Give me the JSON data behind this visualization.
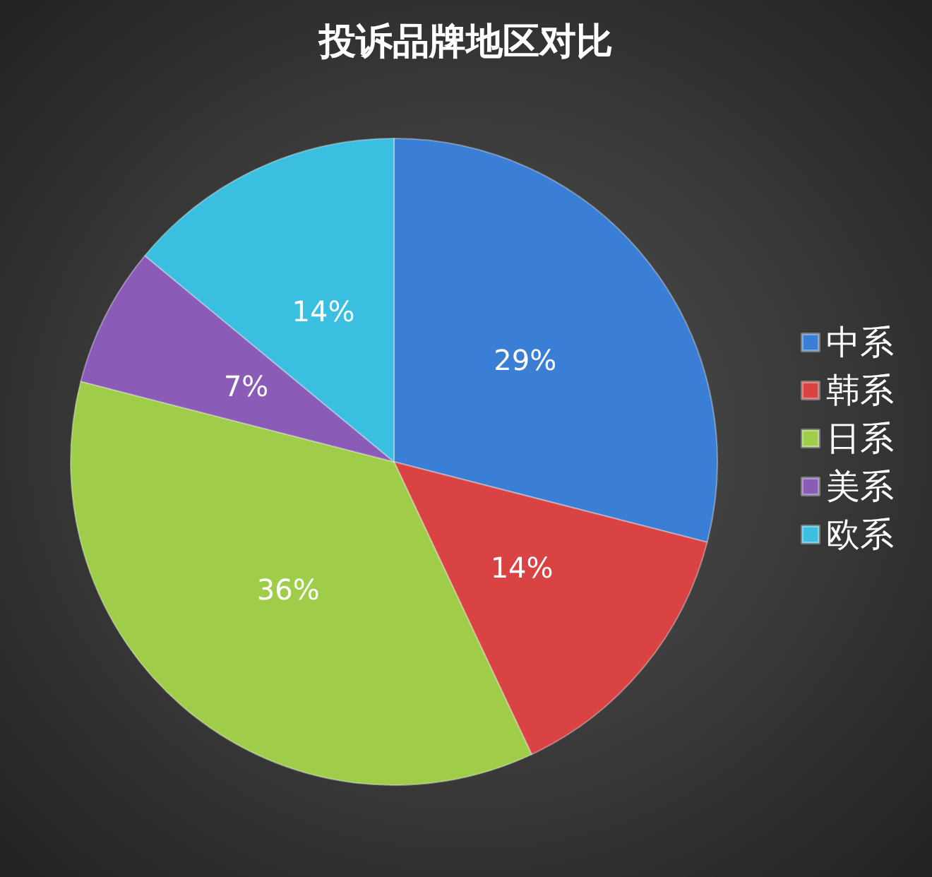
{
  "chart_data": {
    "type": "pie",
    "title": "投诉品牌地区对比",
    "categories": [
      "中系",
      "韩系",
      "日系",
      "美系",
      "欧系"
    ],
    "values": [
      29,
      14,
      36,
      7,
      14
    ],
    "colors": [
      "#3a7fd5",
      "#d94343",
      "#9fcd4a",
      "#8a5cb8",
      "#3bbfe0"
    ],
    "value_labels": [
      "29%",
      "14%",
      "36%",
      "7%",
      "14%"
    ],
    "legend": "right"
  }
}
